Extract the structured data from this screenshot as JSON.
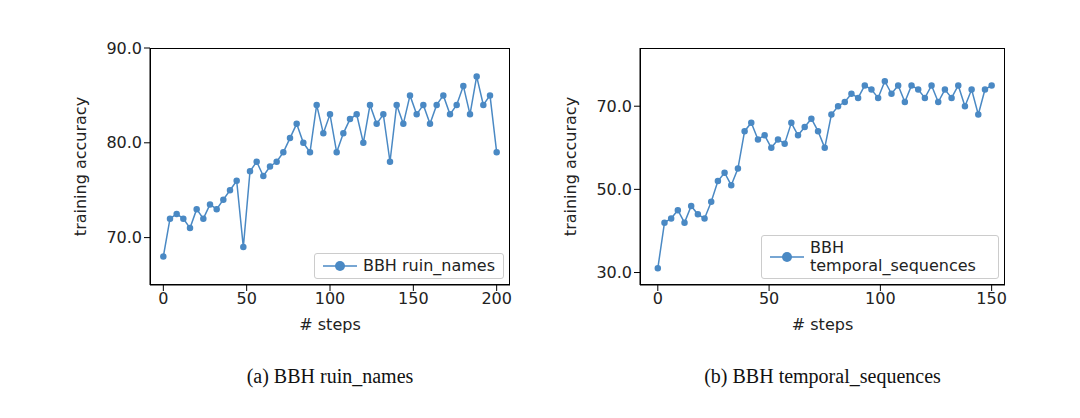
{
  "chart_data": [
    {
      "type": "line",
      "title": "(a) BBH ruin_names",
      "x_label": "# steps",
      "y_label": "training accuracy",
      "xlim": [
        -8,
        208
      ],
      "xticks": [
        0,
        50,
        100,
        150,
        200
      ],
      "ylim": [
        65,
        90
      ],
      "yticks": [
        {
          "value": 70,
          "label": "70.0"
        },
        {
          "value": 80,
          "label": "80.0"
        },
        {
          "value": 90,
          "label": "90.0"
        }
      ],
      "legend": "lower right",
      "grid": false,
      "series": [
        {
          "name": "BBH ruin_names",
          "color": "#4a89c4",
          "marker": "o",
          "line_style": "solid",
          "x": [
            0,
            4,
            8,
            12,
            16,
            20,
            24,
            28,
            32,
            36,
            40,
            44,
            48,
            52,
            56,
            60,
            64,
            68,
            72,
            76,
            80,
            84,
            88,
            92,
            96,
            100,
            104,
            108,
            112,
            116,
            120,
            124,
            128,
            132,
            136,
            140,
            144,
            148,
            152,
            156,
            160,
            164,
            168,
            172,
            176,
            180,
            184,
            188,
            192,
            196,
            200
          ],
          "values": [
            68,
            72,
            72.5,
            72,
            71,
            73,
            72,
            73.5,
            73,
            74,
            75,
            76,
            69,
            77,
            78,
            76.5,
            77.5,
            78,
            79,
            80.5,
            82,
            80,
            79,
            84,
            81,
            83,
            79,
            81,
            82.5,
            83,
            80,
            84,
            82,
            83,
            78,
            84,
            82,
            85,
            83,
            84,
            82,
            84,
            85,
            83,
            84,
            86,
            83,
            87,
            84,
            85,
            79
          ]
        }
      ]
    },
    {
      "type": "line",
      "title": "(b) BBH temporal_sequences",
      "x_label": "# steps",
      "y_label": "training accuracy",
      "xlim": [
        -8,
        156
      ],
      "xticks": [
        0,
        50,
        100,
        150
      ],
      "ylim": [
        27,
        84
      ],
      "yticks": [
        {
          "value": 30,
          "label": "30.0"
        },
        {
          "value": 50,
          "label": "50.0"
        },
        {
          "value": 70,
          "label": "70.0"
        }
      ],
      "legend": "lower right",
      "grid": false,
      "series": [
        {
          "name": "BBH temporal_sequences",
          "color": "#4a89c4",
          "marker": "o",
          "line_style": "solid",
          "x": [
            0,
            3,
            6,
            9,
            12,
            15,
            18,
            21,
            24,
            27,
            30,
            33,
            36,
            39,
            42,
            45,
            48,
            51,
            54,
            57,
            60,
            63,
            66,
            69,
            72,
            75,
            78,
            81,
            84,
            87,
            90,
            93,
            96,
            99,
            102,
            105,
            108,
            111,
            114,
            117,
            120,
            123,
            126,
            129,
            132,
            135,
            138,
            141,
            144,
            147,
            150
          ],
          "values": [
            31,
            42,
            43,
            45,
            42,
            46,
            44,
            43,
            47,
            52,
            54,
            51,
            55,
            64,
            66,
            62,
            63,
            60,
            62,
            61,
            66,
            63,
            65,
            67,
            64,
            60,
            68,
            70,
            71,
            73,
            72,
            75,
            74,
            72,
            76,
            73,
            75,
            71,
            75,
            74,
            72,
            75,
            71,
            74,
            72,
            75,
            70,
            74,
            68,
            74,
            75
          ]
        }
      ]
    }
  ]
}
